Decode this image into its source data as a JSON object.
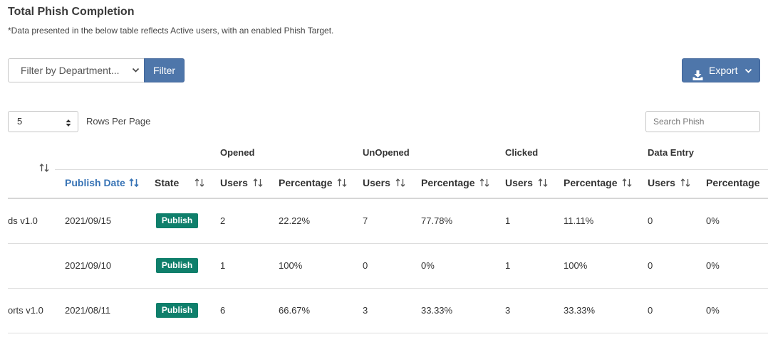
{
  "header": {
    "title": "Total Phish Completion",
    "subtitle": "*Data presented in the below table reflects Active users, with an enabled Phish Target."
  },
  "toolbar": {
    "department_select": "Filter by Department...",
    "filter_label": "Filter",
    "export_label": "Export"
  },
  "pagination": {
    "rows_value": "5",
    "rows_label": "Rows Per Page"
  },
  "search": {
    "placeholder": "Search Phish"
  },
  "table": {
    "groups": [
      "Opened",
      "UnOpened",
      "Clicked",
      "Data Entry"
    ],
    "columns": [
      "Publish Date",
      "State",
      "Users",
      "Percentage",
      "Users",
      "Percentage",
      "Users",
      "Percentage",
      "Users",
      "Percentage"
    ],
    "rows": [
      {
        "name": "ds v1.0",
        "date": "2021/09/15",
        "state": "Publish",
        "opened_users": "2",
        "opened_pct": "22.22%",
        "unopened_users": "7",
        "unopened_pct": "77.78%",
        "clicked_users": "1",
        "clicked_pct": "11.11%",
        "data_users": "0",
        "data_pct": "0%"
      },
      {
        "name": "",
        "date": "2021/09/10",
        "state": "Publish",
        "opened_users": "1",
        "opened_pct": "100%",
        "unopened_users": "0",
        "unopened_pct": "0%",
        "clicked_users": "1",
        "clicked_pct": "100%",
        "data_users": "0",
        "data_pct": "0%"
      },
      {
        "name": "orts v1.0",
        "date": "2021/08/11",
        "state": "Publish",
        "opened_users": "6",
        "opened_pct": "66.67%",
        "unopened_users": "3",
        "unopened_pct": "33.33%",
        "clicked_users": "3",
        "clicked_pct": "33.33%",
        "data_users": "0",
        "data_pct": "0%"
      }
    ]
  },
  "colors": {
    "primary_button": "#4e76aa",
    "badge": "#0f7f6b",
    "active_sort": "#3773b5"
  }
}
